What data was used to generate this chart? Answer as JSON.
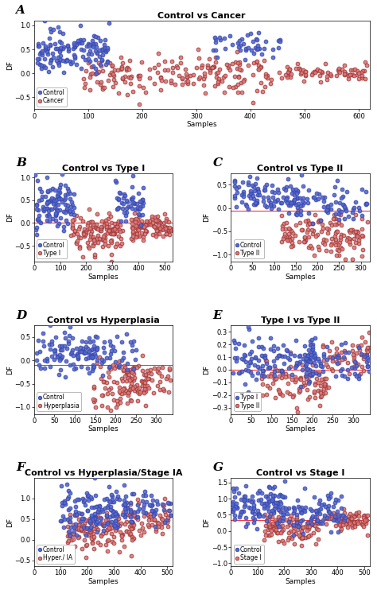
{
  "panels": [
    {
      "label": "A",
      "title": "Control vs Cancer",
      "group1_label": "Control",
      "group2_label": "Cancer",
      "group1_color": "#3344aa",
      "group2_color": "#993333",
      "group1_face": "#5566cc",
      "group2_face": "#dd7777",
      "xlim": [
        0,
        620
      ],
      "ylim": [
        -0.75,
        1.1
      ],
      "xticks": [
        0,
        100,
        200,
        300,
        400,
        500,
        600
      ],
      "yticks": [
        -0.5,
        0,
        0.5,
        1
      ],
      "hline": null,
      "legend_loc": "lower left",
      "seed1": 42,
      "seed2": 99
    },
    {
      "label": "B",
      "title": "Control vs Type I",
      "group1_label": "Control",
      "group2_label": "Type I",
      "group1_color": "#3344aa",
      "group2_color": "#993333",
      "group1_face": "#5566cc",
      "group2_face": "#dd7777",
      "xlim": [
        0,
        530
      ],
      "ylim": [
        -0.85,
        1.1
      ],
      "xticks": [
        0,
        100,
        200,
        300,
        400,
        500
      ],
      "yticks": [
        -0.5,
        0,
        0.5,
        1
      ],
      "hline": 0.0,
      "legend_loc": "lower left",
      "seed1": 10,
      "seed2": 20
    },
    {
      "label": "C",
      "title": "Control vs Type II",
      "group1_label": "Control",
      "group2_label": "Type II",
      "group1_color": "#3344aa",
      "group2_color": "#993333",
      "group1_face": "#5566cc",
      "group2_face": "#dd7777",
      "xlim": [
        0,
        320
      ],
      "ylim": [
        -1.15,
        0.75
      ],
      "xticks": [
        0,
        50,
        100,
        150,
        200,
        250,
        300
      ],
      "yticks": [
        -1,
        -0.5,
        0,
        0.5
      ],
      "hline": -0.05,
      "legend_loc": "lower left",
      "seed1": 30,
      "seed2": 40
    },
    {
      "label": "D",
      "title": "Control vs Hyperplasia",
      "group1_label": "Control",
      "group2_label": "Hyperplasia",
      "group1_color": "#3344aa",
      "group2_color": "#993333",
      "group1_face": "#5566cc",
      "group2_face": "#dd7777",
      "xlim": [
        0,
        340
      ],
      "ylim": [
        -1.15,
        0.75
      ],
      "xticks": [
        0,
        50,
        100,
        150,
        200,
        250,
        300
      ],
      "yticks": [
        -1,
        -0.5,
        0,
        0.5
      ],
      "hline": -0.1,
      "legend_loc": "lower left",
      "seed1": 50,
      "seed2": 60
    },
    {
      "label": "E",
      "title": "Type I vs Type II",
      "group1_label": "Type I",
      "group2_label": "Type II",
      "group1_color": "#3344aa",
      "group2_color": "#993333",
      "group1_face": "#5566cc",
      "group2_face": "#dd7777",
      "xlim": [
        0,
        340
      ],
      "ylim": [
        -0.35,
        0.35
      ],
      "xticks": [
        0,
        50,
        100,
        150,
        200,
        250,
        300
      ],
      "yticks": [
        -0.3,
        -0.2,
        -0.1,
        0,
        0.1,
        0.2,
        0.3
      ],
      "hline": 0.0,
      "legend_loc": "lower left",
      "seed1": 70,
      "seed2": 80
    },
    {
      "label": "F",
      "title": "Control vs Hyperplasia/Stage IA",
      "group1_label": "Control",
      "group2_label": "Hyper./ IA",
      "group1_color": "#3344aa",
      "group2_color": "#993333",
      "group1_face": "#5566cc",
      "group2_face": "#dd7777",
      "xlim": [
        0,
        520
      ],
      "ylim": [
        -0.65,
        1.5
      ],
      "xticks": [
        0,
        100,
        200,
        300,
        400,
        500
      ],
      "yticks": [
        -0.5,
        0,
        0.5,
        1
      ],
      "hline": null,
      "legend_loc": "lower left",
      "seed1": 90,
      "seed2": 100
    },
    {
      "label": "G",
      "title": "Control vs Stage I",
      "group1_label": "Control",
      "group2_label": "Stage I",
      "group1_color": "#3344aa",
      "group2_color": "#993333",
      "group1_face": "#5566cc",
      "group2_face": "#dd7777",
      "xlim": [
        0,
        520
      ],
      "ylim": [
        -1.1,
        1.65
      ],
      "xticks": [
        0,
        100,
        200,
        300,
        400,
        500
      ],
      "yticks": [
        -1,
        -0.5,
        0,
        0.5,
        1,
        1.5
      ],
      "hline": 0.35,
      "legend_loc": "lower left",
      "seed1": 110,
      "seed2": 120
    }
  ],
  "bg_color": "#ffffff",
  "marker_size": 3.5,
  "marker_edge_width": 0.6,
  "font_size_label": 11,
  "font_size_title": 8,
  "font_size_tick": 6,
  "font_size_axis": 6.5,
  "font_size_legend": 5.5
}
